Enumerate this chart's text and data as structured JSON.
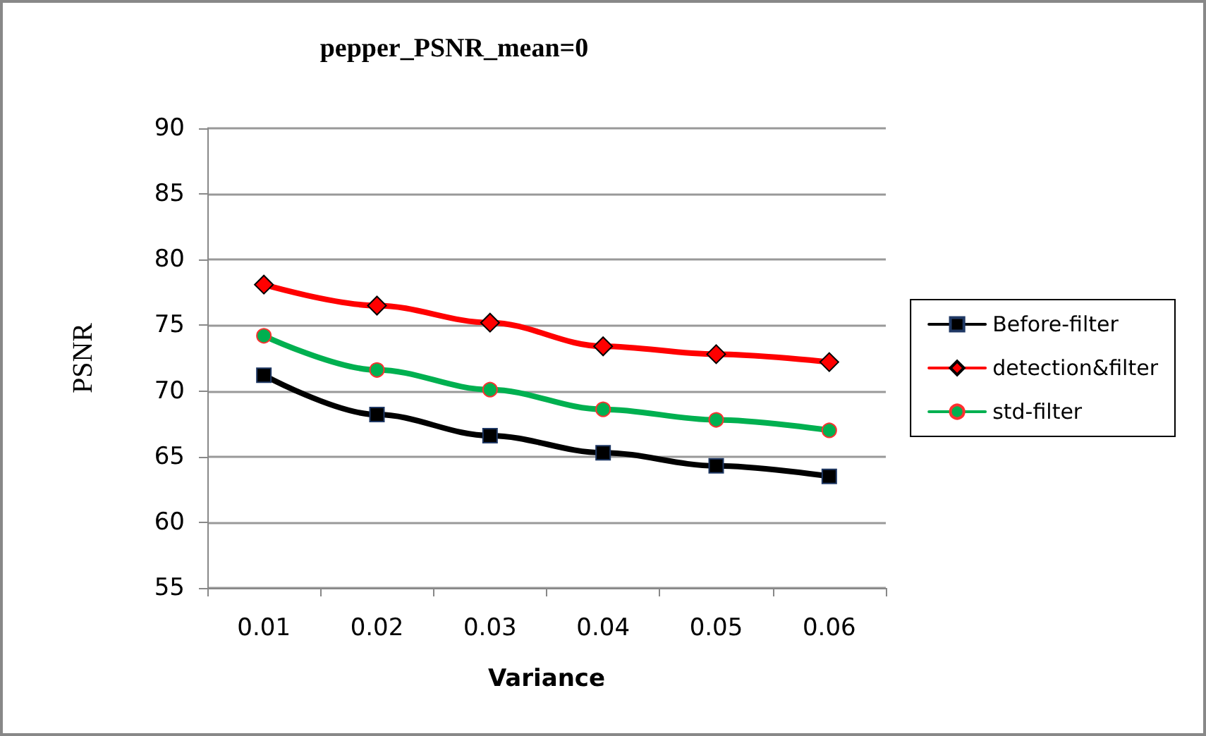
{
  "chart_data": {
    "type": "line",
    "title": "pepper_PSNR_mean=0",
    "xlabel": "Variance",
    "ylabel": "PSNR",
    "categories": [
      "0.01",
      "0.02",
      "0.03",
      "0.04",
      "0.05",
      "0.06"
    ],
    "series": [
      {
        "name": "Before-filter",
        "color": "#000000",
        "marker": "square",
        "values": [
          71.2,
          68.2,
          66.6,
          65.3,
          64.3,
          63.5
        ]
      },
      {
        "name": "detection&filter",
        "color": "#ff0000",
        "marker": "diamond",
        "values": [
          78.1,
          76.5,
          75.2,
          73.4,
          72.8,
          72.2
        ]
      },
      {
        "name": "std-filter",
        "color": "#00b050",
        "marker": "circle",
        "values": [
          74.2,
          71.6,
          70.1,
          68.6,
          67.8,
          67.0
        ]
      }
    ],
    "ylim": [
      55,
      90
    ],
    "yticks": [
      55,
      60,
      65,
      70,
      75,
      80,
      85,
      90
    ],
    "grid": "y",
    "legend": "right",
    "line_style": "solid"
  }
}
